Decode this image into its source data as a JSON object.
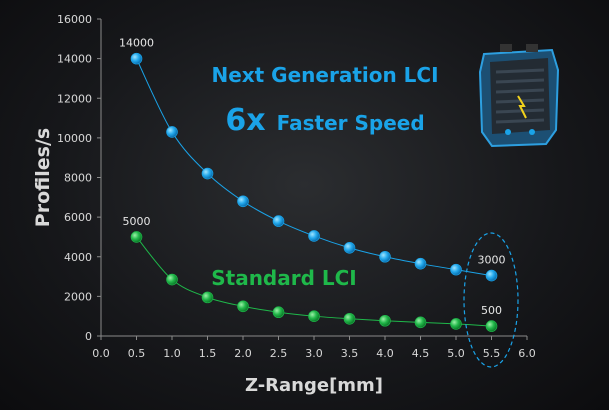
{
  "chart_data": {
    "type": "line",
    "title": "",
    "xlabel": "Z-Range[mm]",
    "ylabel": "Profiles/s",
    "xlim": [
      0,
      6
    ],
    "ylim": [
      0,
      16000
    ],
    "x_ticks": [
      "0.0",
      "0.5",
      "1.0",
      "1.5",
      "2.0",
      "2.5",
      "3.0",
      "3.5",
      "4.0",
      "4.5",
      "5.0",
      "5.5",
      "6.0"
    ],
    "y_ticks": [
      "0",
      "2000",
      "4000",
      "6000",
      "8000",
      "10000",
      "12000",
      "14000",
      "16000"
    ],
    "grid": false,
    "x": [
      0.5,
      1.0,
      1.5,
      2.0,
      2.5,
      3.0,
      3.5,
      4.0,
      4.5,
      5.0,
      5.5
    ],
    "series": [
      {
        "name": "Next Generation LCI",
        "color": "#1aa3e8",
        "values": [
          14000,
          10300,
          8200,
          6800,
          5800,
          5050,
          4450,
          4000,
          3650,
          3350,
          3050
        ]
      },
      {
        "name": "Standard LCI",
        "color": "#1fb84a",
        "values": [
          5000,
          2850,
          1950,
          1500,
          1200,
          1000,
          870,
          770,
          690,
          610,
          500
        ]
      }
    ],
    "data_labels": [
      {
        "series": 0,
        "index": 0,
        "text": "14000"
      },
      {
        "series": 0,
        "index": 10,
        "text": "3000"
      },
      {
        "series": 1,
        "index": 0,
        "text": "5000"
      },
      {
        "series": 1,
        "index": 10,
        "text": "500"
      }
    ],
    "annotations": {
      "headline": "Next Generation LCI",
      "speed_factor": "6x",
      "speed_text": "Faster Speed",
      "standard": "Standard LCI"
    },
    "highlight": "dashed ellipse around Z-Range 5.5",
    "product_image": "blue-sensor-device"
  }
}
